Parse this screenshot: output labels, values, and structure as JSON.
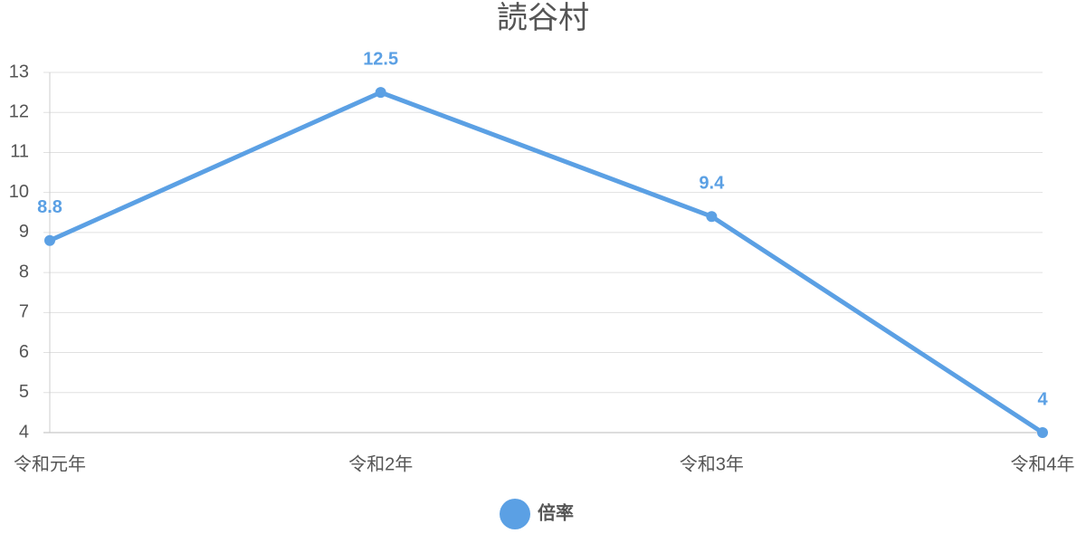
{
  "chart_data": {
    "type": "line",
    "title": "読谷村",
    "categories": [
      "令和元年",
      "令和2年",
      "令和3年",
      "令和4年"
    ],
    "series": [
      {
        "name": "倍率",
        "color": "#5ba0e4",
        "values": [
          8.8,
          12.5,
          9.4,
          4
        ]
      }
    ],
    "ylim": [
      4,
      13
    ],
    "yticks": [
      4,
      5,
      6,
      7,
      8,
      9,
      10,
      11,
      12,
      13
    ],
    "grid": true,
    "legend": "bottom",
    "data_labels": true
  }
}
